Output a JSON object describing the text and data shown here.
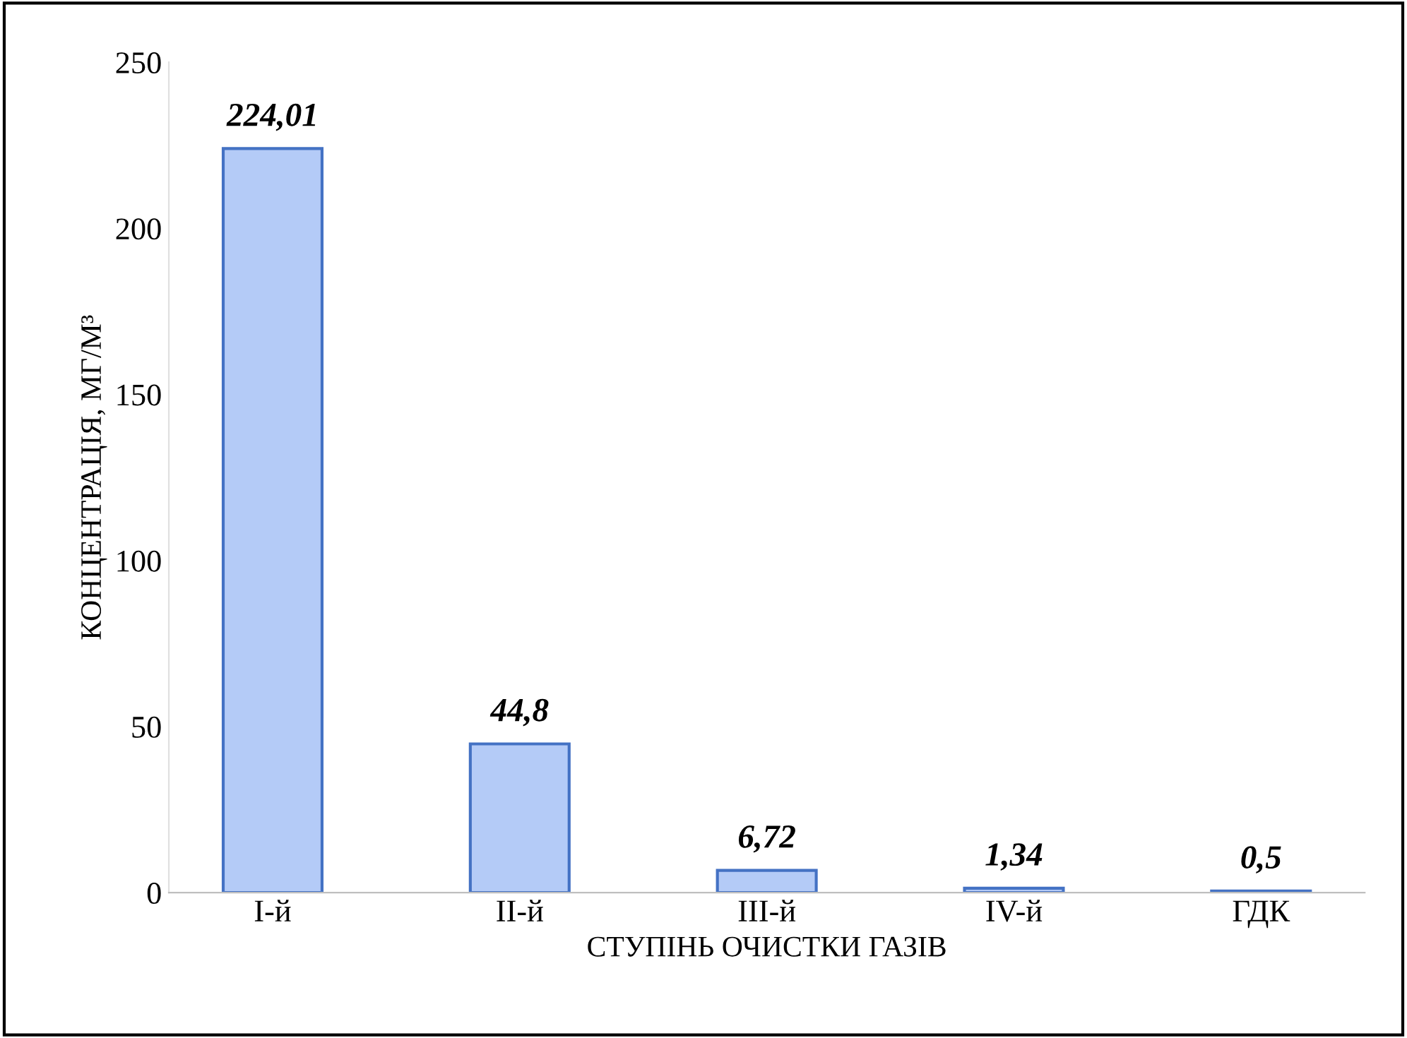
{
  "chart_data": {
    "type": "bar",
    "xlabel": "СТУПІНЬ ОЧИСТКИ ГАЗІВ",
    "ylabel": "КОНЦЕНТРАЦІЯ, МГ/М³",
    "categories": [
      "I-й",
      "II-й",
      "III-й",
      "IV-й",
      "ГДК"
    ],
    "values": [
      224.01,
      44.8,
      6.72,
      1.34,
      0.5
    ],
    "value_labels": [
      "224,01",
      "44,8",
      "6,72",
      "1,34",
      "0,5"
    ],
    "color": "#b4cbf7",
    "ylim": [
      0,
      250
    ],
    "yticks": [
      0,
      50,
      100,
      150,
      200,
      250
    ],
    "grid": false
  }
}
